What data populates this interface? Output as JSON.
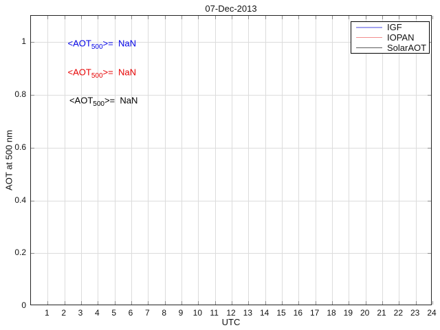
{
  "chart_data": {
    "type": "line",
    "title": "07-Dec-2013",
    "xlabel": "UTC",
    "ylabel": "AOT at 500 nm",
    "xlim": [
      0,
      24
    ],
    "ylim": [
      0,
      1.1
    ],
    "x_ticks": [
      1,
      2,
      3,
      4,
      5,
      6,
      7,
      8,
      9,
      10,
      11,
      12,
      13,
      14,
      15,
      16,
      17,
      18,
      19,
      20,
      21,
      22,
      23,
      24
    ],
    "y_ticks": [
      0,
      0.2,
      0.4,
      0.6,
      0.8,
      1
    ],
    "y_tick_labels": [
      "0",
      "0.2",
      "0.4",
      "0.6",
      "0.8",
      "1"
    ],
    "grid": true,
    "legend": {
      "position": "top-right",
      "entries": [
        {
          "label": "IGF",
          "color": "#a3a3ef",
          "thickness": 2
        },
        {
          "label": "IOPAN",
          "color": "#f28d8d",
          "thickness": 1.5
        },
        {
          "label": "SolarAOT",
          "color": "#5c5c5c",
          "thickness": 1.5
        }
      ]
    },
    "series": [
      {
        "name": "IGF",
        "color": "#a3a3ef",
        "x": [],
        "y": []
      },
      {
        "name": "IOPAN",
        "color": "#f28d8d",
        "x": [],
        "y": []
      },
      {
        "name": "SolarAOT",
        "color": "#5c5c5c",
        "x": [],
        "y": []
      }
    ],
    "annotations": [
      {
        "prefix": "<AOT",
        "subscript": "500",
        "suffix": ">=  NaN",
        "color": "#0000e6",
        "x": 2.2,
        "y": 0.995
      },
      {
        "prefix": "<AOT",
        "subscript": "500",
        "suffix": ">=  NaN",
        "color": "#e60000",
        "x": 2.2,
        "y": 0.886
      },
      {
        "prefix": "<AOT",
        "subscript": "500",
        "suffix": ">=  NaN",
        "color": "#000000",
        "x": 2.3,
        "y": 0.779
      }
    ],
    "colors": {
      "grid": "#dcdcdc",
      "axis_border": "#222222",
      "tick_mark": "#8a8a8a",
      "background": "#ffffff"
    }
  }
}
